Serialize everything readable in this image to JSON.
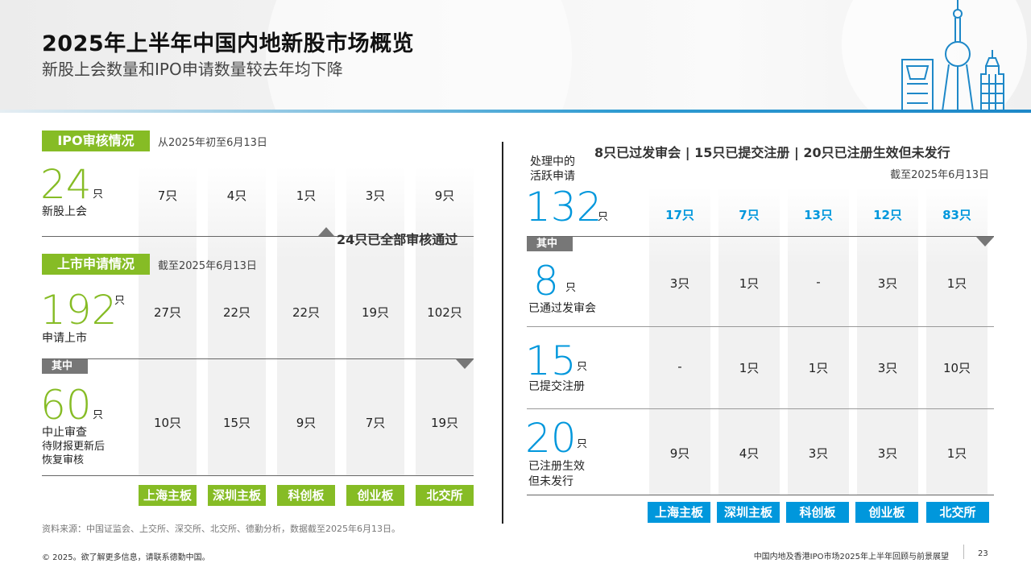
{
  "header": {
    "title": "2025年上半年中国内地新股市场概览",
    "subtitle": "新股上会数量和IPO申请数量较去年均下降"
  },
  "left": {
    "review": {
      "tag": "IPO审核情况",
      "note": "从2025年初至6月13日",
      "big": "24",
      "unit": "只",
      "label": "新股上会",
      "values": [
        "7只",
        "4只",
        "1只",
        "3只",
        "9只"
      ],
      "passed_note": "24只已全部审核通过"
    },
    "apply": {
      "tag": "上市申请情况",
      "note": "截至2025年6月13日",
      "big": "192",
      "unit": "只",
      "label": "申请上市",
      "values": [
        "27只",
        "22只",
        "22只",
        "19只",
        "102只"
      ]
    },
    "of_which": "其中",
    "suspended": {
      "big": "60",
      "unit": "只",
      "label1": "中止审查",
      "label2": "待财报更新后",
      "label3": "恢复审核",
      "values": [
        "10只",
        "15只",
        "9只",
        "7只",
        "19只"
      ]
    },
    "boards": [
      "上海主板",
      "深圳主板",
      "科创板",
      "创业板",
      "北交所"
    ]
  },
  "right": {
    "headline": "8只已过发审会 | 15只已提交注册 | 20只已注册生效但未发行",
    "date": "截至2025年6月13日",
    "active": {
      "label1": "处理中的",
      "label2": "活跃申请",
      "big": "132",
      "unit": "只",
      "values": [
        "17只",
        "7只",
        "13只",
        "12只",
        "83只"
      ]
    },
    "of_which": "其中",
    "approved": {
      "big": "8",
      "unit": "只",
      "label": "已通过发审会",
      "values": [
        "3只",
        "1只",
        "-",
        "3只",
        "1只"
      ]
    },
    "submitted": {
      "big": "15",
      "unit": "只",
      "label": "已提交注册",
      "values": [
        "-",
        "1只",
        "1只",
        "3只",
        "10只"
      ]
    },
    "registered": {
      "big": "20",
      "unit": "只",
      "label1": "已注册生效",
      "label2": "但未发行",
      "values": [
        "9只",
        "4只",
        "3只",
        "3只",
        "1只"
      ]
    },
    "boards": [
      "上海主板",
      "深圳主板",
      "科创板",
      "创业板",
      "北交所"
    ]
  },
  "footer": {
    "source": "资料来源：中国证监会、上交所、深交所、北交所、德勤分析，数据截至2025年6月13日。",
    "copyright": "© 2025。欲了解更多信息，请联系德勤中国。",
    "report": "中国内地及香港IPO市场2025年上半年回顾与前景展望",
    "page": "23"
  },
  "colors": {
    "green": "#86bc25",
    "blue": "#0097dc",
    "gray_tag": "#777777"
  }
}
